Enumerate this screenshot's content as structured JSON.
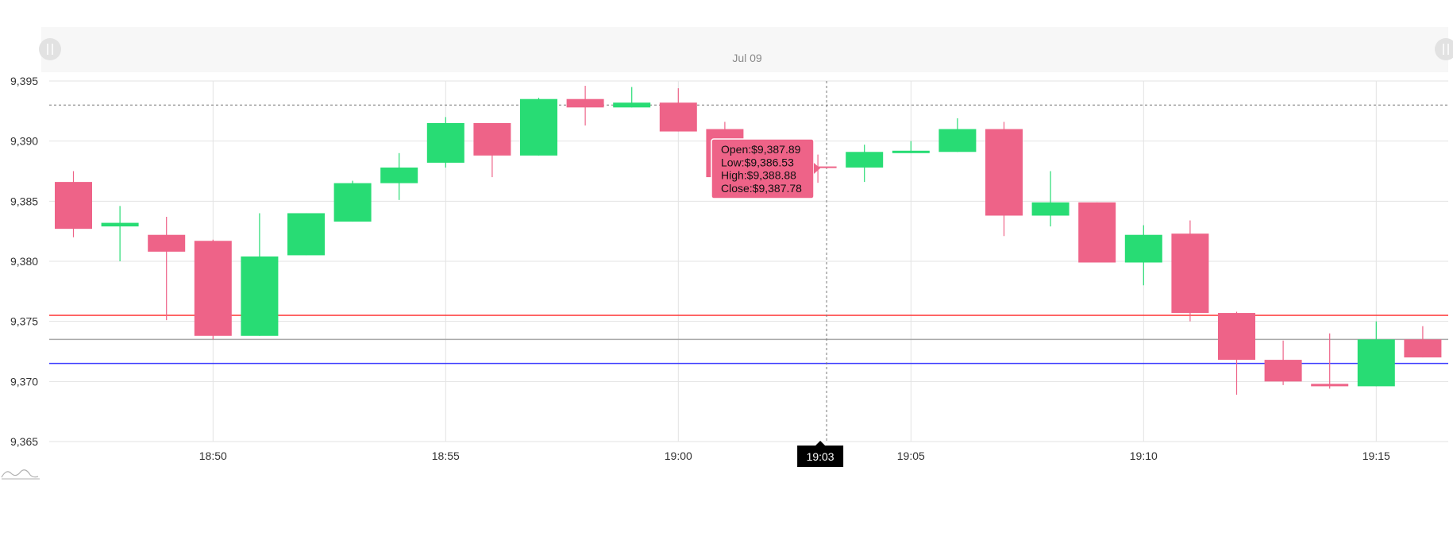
{
  "chart_data": {
    "type": "candlestick",
    "date_label": "Jul 09",
    "ylim": [
      9365,
      9395
    ],
    "y_ticks": [
      9365,
      9370,
      9375,
      9380,
      9385,
      9390,
      9395
    ],
    "y_tick_labels": [
      "9,365",
      "9,370",
      "9,375",
      "9,380",
      "9,385",
      "9,390",
      "9,395"
    ],
    "x_ticks": [
      {
        "time": "18:50",
        "label": "18:50"
      },
      {
        "time": "18:55",
        "label": "18:55"
      },
      {
        "time": "19:00",
        "label": "19:00"
      },
      {
        "time": "19:05",
        "label": "19:05"
      },
      {
        "time": "19:10",
        "label": "19:10"
      },
      {
        "time": "19:15",
        "label": "19:15"
      }
    ],
    "candles": [
      {
        "time": "18:47",
        "open": 9386.6,
        "high": 9387.5,
        "low": 9382.0,
        "close": 9382.7
      },
      {
        "time": "18:48",
        "open": 9382.9,
        "high": 9384.6,
        "low": 9380.0,
        "close": 9383.2
      },
      {
        "time": "18:49",
        "open": 9382.2,
        "high": 9383.7,
        "low": 9375.1,
        "close": 9380.8
      },
      {
        "time": "18:50",
        "open": 9381.7,
        "high": 9381.8,
        "low": 9373.5,
        "close": 9373.8
      },
      {
        "time": "18:51",
        "open": 9373.8,
        "high": 9384.0,
        "low": 9373.8,
        "close": 9380.4
      },
      {
        "time": "18:52",
        "open": 9380.5,
        "high": 9384.0,
        "low": 9380.5,
        "close": 9384.0
      },
      {
        "time": "18:53",
        "open": 9383.3,
        "high": 9386.7,
        "low": 9383.3,
        "close": 9386.5
      },
      {
        "time": "18:54",
        "open": 9386.5,
        "high": 9389.0,
        "low": 9385.1,
        "close": 9387.8
      },
      {
        "time": "18:55",
        "open": 9388.2,
        "high": 9392.0,
        "low": 9387.8,
        "close": 9391.5
      },
      {
        "time": "18:56",
        "open": 9391.5,
        "high": 9391.5,
        "low": 9387.0,
        "close": 9388.8
      },
      {
        "time": "18:57",
        "open": 9388.8,
        "high": 9393.6,
        "low": 9388.8,
        "close": 9393.5
      },
      {
        "time": "18:58",
        "open": 9393.5,
        "high": 9394.6,
        "low": 9391.3,
        "close": 9392.8
      },
      {
        "time": "18:59",
        "open": 9392.8,
        "high": 9394.5,
        "low": 9392.8,
        "close": 9393.2
      },
      {
        "time": "19:00",
        "open": 9393.2,
        "high": 9394.4,
        "low": 9390.8,
        "close": 9390.8
      },
      {
        "time": "19:01",
        "open": 9391.0,
        "high": 9391.6,
        "low": 9387.0,
        "close": 9387.0
      },
      {
        "time": "19:02",
        "open": 9387.9,
        "high": 9388.2,
        "low": 9387.5,
        "close": 9387.8
      },
      {
        "time": "19:03",
        "open": 9387.89,
        "high": 9388.88,
        "low": 9386.53,
        "close": 9387.78
      },
      {
        "time": "19:04",
        "open": 9387.8,
        "high": 9389.7,
        "low": 9386.6,
        "close": 9389.1
      },
      {
        "time": "19:05",
        "open": 9389.0,
        "high": 9390.0,
        "low": 9389.0,
        "close": 9389.2
      },
      {
        "time": "19:06",
        "open": 9389.1,
        "high": 9391.9,
        "low": 9389.1,
        "close": 9391.0
      },
      {
        "time": "19:07",
        "open": 9391.0,
        "high": 9391.6,
        "low": 9382.1,
        "close": 9383.8
      },
      {
        "time": "19:08",
        "open": 9383.8,
        "high": 9387.5,
        "low": 9382.9,
        "close": 9384.9
      },
      {
        "time": "19:09",
        "open": 9384.9,
        "high": 9384.9,
        "low": 9379.9,
        "close": 9379.9
      },
      {
        "time": "19:10",
        "open": 9379.9,
        "high": 9383.0,
        "low": 9378.0,
        "close": 9382.2
      },
      {
        "time": "19:11",
        "open": 9382.3,
        "high": 9383.4,
        "low": 9375.0,
        "close": 9375.7
      },
      {
        "time": "19:12",
        "open": 9375.7,
        "high": 9375.8,
        "low": 9368.9,
        "close": 9371.8
      },
      {
        "time": "19:13",
        "open": 9371.8,
        "high": 9373.4,
        "low": 9369.7,
        "close": 9370.0
      },
      {
        "time": "19:14",
        "open": 9369.8,
        "high": 9374.0,
        "low": 9369.4,
        "close": 9369.6
      },
      {
        "time": "19:15",
        "open": 9369.6,
        "high": 9375.0,
        "low": 9369.6,
        "close": 9373.5
      },
      {
        "time": "19:16",
        "open": 9373.5,
        "high": 9374.6,
        "low": 9372.0,
        "close": 9372.0
      }
    ],
    "horizontal_lines": [
      {
        "value": 9375.5,
        "color": "#ff2a2a",
        "style": "solid"
      },
      {
        "value": 9373.5,
        "color": "#a9a9a9",
        "style": "solid"
      },
      {
        "value": 9371.5,
        "color": "#3b3bff",
        "style": "solid"
      },
      {
        "value": 9393.0,
        "color": "#777777",
        "style": "dashed"
      }
    ],
    "crosshair": {
      "time": "19:03",
      "label": "19:03"
    },
    "tooltip": {
      "open": "Open:$9,387.89",
      "low": "Low:$9,386.53",
      "high": "High:$9,388.88",
      "close": "Close:$9,387.78"
    },
    "colors": {
      "up": "#28dc74",
      "down": "#ee6388",
      "grid": "#e3e3e3",
      "axis_text": "#333333",
      "tooltip_bg": "#ee6388",
      "crosshair_label_bg": "#000000"
    }
  }
}
